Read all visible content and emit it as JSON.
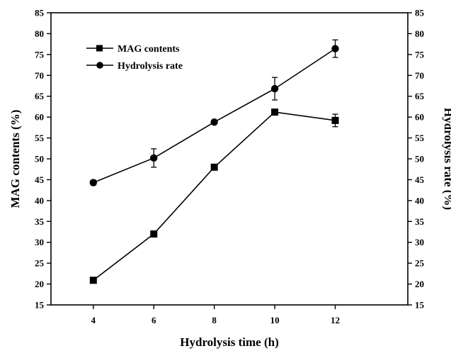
{
  "chart_data": {
    "type": "line",
    "x": [
      4,
      6,
      8,
      10,
      12
    ],
    "xlabel": "Hydrolysis time (h)",
    "ylabel_left": "MAG contents (%)",
    "ylabel_right": "Hydrolysis rate (%)",
    "xlim": [
      2.6,
      14.4
    ],
    "ylim": [
      15,
      85
    ],
    "x_ticks": [
      4,
      6,
      8,
      10,
      12
    ],
    "y_ticks": [
      15,
      20,
      25,
      30,
      35,
      40,
      45,
      50,
      55,
      60,
      65,
      70,
      75,
      80,
      85
    ],
    "grid": false,
    "legend_position": "top-left",
    "series": [
      {
        "name": "MAG contents",
        "marker": "square",
        "axis": "left",
        "values": [
          20.9,
          32.0,
          48.0,
          61.2,
          59.2
        ],
        "errors": [
          0.6,
          0.5,
          0.4,
          0.5,
          1.5
        ]
      },
      {
        "name": "Hydrolysis rate",
        "marker": "circle",
        "axis": "right",
        "values": [
          44.3,
          50.2,
          58.8,
          66.8,
          76.4
        ],
        "errors": [
          0.6,
          2.2,
          0.4,
          2.7,
          2.1
        ]
      }
    ]
  }
}
